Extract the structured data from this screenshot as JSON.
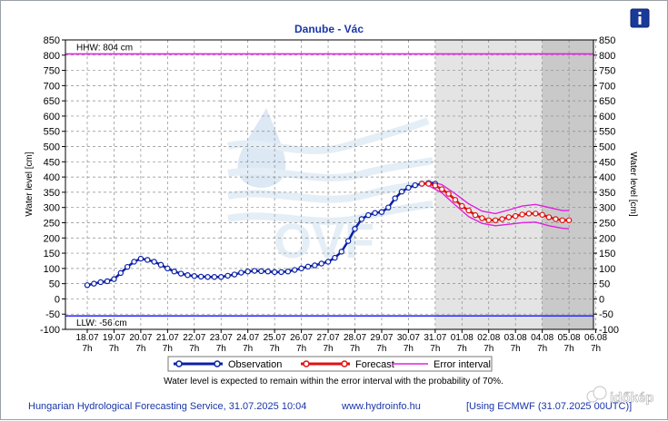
{
  "chart_data": {
    "type": "line",
    "title": "Danube - Vác",
    "ylabel_left": "Water level [cm]",
    "ylabel_right": "Water level [cm]",
    "ylim": [
      -100,
      850
    ],
    "y_ticks": [
      -100,
      -50,
      0,
      50,
      100,
      150,
      200,
      250,
      300,
      350,
      400,
      450,
      500,
      550,
      600,
      650,
      700,
      750,
      800,
      850
    ],
    "x_ticks": [
      {
        "date": "18.07",
        "hour": "7h"
      },
      {
        "date": "19.07",
        "hour": "7h"
      },
      {
        "date": "20.07",
        "hour": "7h"
      },
      {
        "date": "21.07",
        "hour": "7h"
      },
      {
        "date": "22.07",
        "hour": "7h"
      },
      {
        "date": "23.07",
        "hour": "7h"
      },
      {
        "date": "24.07",
        "hour": "7h"
      },
      {
        "date": "25.07",
        "hour": "7h"
      },
      {
        "date": "26.07",
        "hour": "7h"
      },
      {
        "date": "27.07",
        "hour": "7h"
      },
      {
        "date": "28.07",
        "hour": "7h"
      },
      {
        "date": "29.07",
        "hour": "7h"
      },
      {
        "date": "30.07",
        "hour": "7h"
      },
      {
        "date": "31.07",
        "hour": "7h"
      },
      {
        "date": "01.08",
        "hour": "7h"
      },
      {
        "date": "02.08",
        "hour": "7h"
      },
      {
        "date": "03.08",
        "hour": "7h"
      },
      {
        "date": "04.08",
        "hour": "7h"
      },
      {
        "date": "05.08",
        "hour": "7h"
      },
      {
        "date": "06.08",
        "hour": "7h"
      }
    ],
    "reference_lines": [
      {
        "label": "HHW: 804 cm",
        "value": 804,
        "color": "#e020e0"
      },
      {
        "label": "LLW: -56 cm",
        "value": -56,
        "color": "#3030ff"
      }
    ],
    "shaded_from_tick": "31.07",
    "shaded_darker_from_tick": "04.08",
    "series": [
      {
        "name": "Observation",
        "color": "#0a1fa8",
        "x": [
          0,
          0.25,
          0.5,
          0.75,
          1.0,
          1.25,
          1.5,
          1.75,
          2.0,
          2.25,
          2.5,
          2.75,
          3.0,
          3.25,
          3.5,
          3.75,
          4.0,
          4.25,
          4.5,
          4.75,
          5.0,
          5.25,
          5.5,
          5.75,
          6.0,
          6.25,
          6.5,
          6.75,
          7.0,
          7.25,
          7.5,
          7.75,
          8.0,
          8.25,
          8.5,
          8.75,
          9.0,
          9.25,
          9.5,
          9.75,
          10.0,
          10.25,
          10.5,
          10.75,
          11.0,
          11.25,
          11.5,
          11.75,
          12.0,
          12.25,
          12.5,
          12.75,
          13.0
        ],
        "values": [
          45,
          50,
          55,
          58,
          65,
          85,
          105,
          122,
          132,
          128,
          122,
          112,
          100,
          90,
          83,
          78,
          75,
          73,
          72,
          72,
          72,
          76,
          80,
          86,
          90,
          92,
          91,
          90,
          88,
          88,
          90,
          95,
          100,
          106,
          110,
          116,
          122,
          135,
          155,
          190,
          230,
          262,
          275,
          282,
          285,
          300,
          330,
          352,
          365,
          373,
          378,
          380,
          378
        ]
      },
      {
        "name": "Forecast",
        "color": "#e01010",
        "x": [
          12.5,
          12.75,
          13.0,
          13.25,
          13.5,
          13.75,
          14.0,
          14.25,
          14.5,
          14.75,
          15.0,
          15.25,
          15.5,
          15.75,
          16.0,
          16.25,
          16.5,
          16.75,
          17.0,
          17.25,
          17.5,
          17.75,
          18.0
        ],
        "values": [
          378,
          378,
          372,
          360,
          345,
          325,
          305,
          290,
          275,
          265,
          258,
          258,
          262,
          268,
          272,
          277,
          280,
          280,
          276,
          268,
          262,
          258,
          258
        ]
      },
      {
        "name": "Error interval",
        "color": "#e020e0",
        "x": [
          12.75,
          13.25,
          13.75,
          14.25,
          14.75,
          15.25,
          15.75,
          16.25,
          16.75,
          17.25,
          17.75,
          18.0
        ],
        "upper": [
          386,
          375,
          345,
          312,
          288,
          280,
          292,
          305,
          310,
          300,
          290,
          290
        ],
        "lower": [
          372,
          348,
          308,
          270,
          248,
          240,
          245,
          250,
          252,
          240,
          232,
          230
        ]
      }
    ],
    "legend": {
      "placement": "bottom",
      "entries": [
        "Observation",
        "Forecast",
        "Error interval"
      ]
    },
    "annotation": "Water level is expected to remain within the error interval with the probability of 70%."
  },
  "footer": {
    "left": "Hungarian Hydrological Forecasting Service, 31.07.2025 10:04",
    "center": "www.hydroinfo.hu",
    "right": "[Using ECMWF (31.07.2025 00UTC)]"
  },
  "logo_text": "OVF",
  "watermark": "időkép",
  "info_icon": "info-icon",
  "colors": {
    "title": "#1a35a8",
    "observation": "#0a1fa8",
    "forecast": "#e01010",
    "error": "#e020e0",
    "hhw": "#e020e0",
    "llw": "#3030ff",
    "shade": "#e4e4e4",
    "shade_dark": "#c9c9c9"
  }
}
